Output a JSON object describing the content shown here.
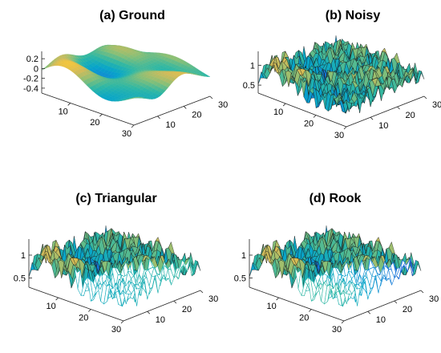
{
  "chart_data": [
    {
      "type": "surface",
      "title": "(a) Ground",
      "surface": "ground",
      "render": "surface",
      "x_ticks": [
        "10",
        "20",
        "30"
      ],
      "y_ticks": [
        "10",
        "20",
        "30"
      ],
      "z_ticks": [
        "0.2",
        "0",
        "-0.2",
        "-0.4"
      ],
      "z_values": [
        0.2,
        0,
        -0.2,
        -0.4
      ],
      "zlim": [
        -0.5,
        0.35
      ],
      "grid_size": [
        30,
        30
      ],
      "colormap": [
        "#352a87",
        "#0f5cdd",
        "#1481d6",
        "#06a4ca",
        "#2eb7a4",
        "#87bf77",
        "#d1bb59",
        "#fec832",
        "#f9fb0e"
      ]
    },
    {
      "type": "surface",
      "title": "(b) Noisy",
      "surface": "noisy",
      "render": "surface",
      "x_ticks": [
        "10",
        "20",
        "30"
      ],
      "y_ticks": [
        "10",
        "20",
        "30"
      ],
      "z_ticks": [
        "1",
        "0.5"
      ],
      "z_values": [
        1,
        0.5
      ],
      "zlim": [
        0.3,
        1.35
      ],
      "grid_size": [
        30,
        30
      ],
      "colormap": [
        "#352a87",
        "#0f5cdd",
        "#1481d6",
        "#06a4ca",
        "#2eb7a4",
        "#87bf77",
        "#d1bb59",
        "#fec832",
        "#f9fb0e"
      ]
    },
    {
      "type": "surface",
      "title": "(c) Triangular",
      "surface": "noisy",
      "render": "triangular",
      "x_ticks": [
        "10",
        "20",
        "30"
      ],
      "y_ticks": [
        "10",
        "20",
        "30"
      ],
      "z_ticks": [
        "1",
        "0.5"
      ],
      "z_values": [
        1,
        0.5
      ],
      "zlim": [
        0.3,
        1.35
      ],
      "grid_size": [
        30,
        30
      ],
      "colormap": [
        "#352a87",
        "#0f5cdd",
        "#1481d6",
        "#06a4ca",
        "#2eb7a4",
        "#87bf77",
        "#d1bb59",
        "#fec832",
        "#f9fb0e"
      ]
    },
    {
      "type": "surface",
      "title": "(d) Rook",
      "surface": "noisy",
      "render": "rook",
      "x_ticks": [
        "10",
        "20",
        "30"
      ],
      "y_ticks": [
        "10",
        "20",
        "30"
      ],
      "z_ticks": [
        "1",
        "0.5"
      ],
      "z_values": [
        1,
        0.5
      ],
      "zlim": [
        0.3,
        1.35
      ],
      "grid_size": [
        30,
        30
      ],
      "colormap": [
        "#352a87",
        "#0f5cdd",
        "#1481d6",
        "#06a4ca",
        "#2eb7a4",
        "#87bf77",
        "#d1bb59",
        "#fec832",
        "#f9fb0e"
      ]
    }
  ]
}
